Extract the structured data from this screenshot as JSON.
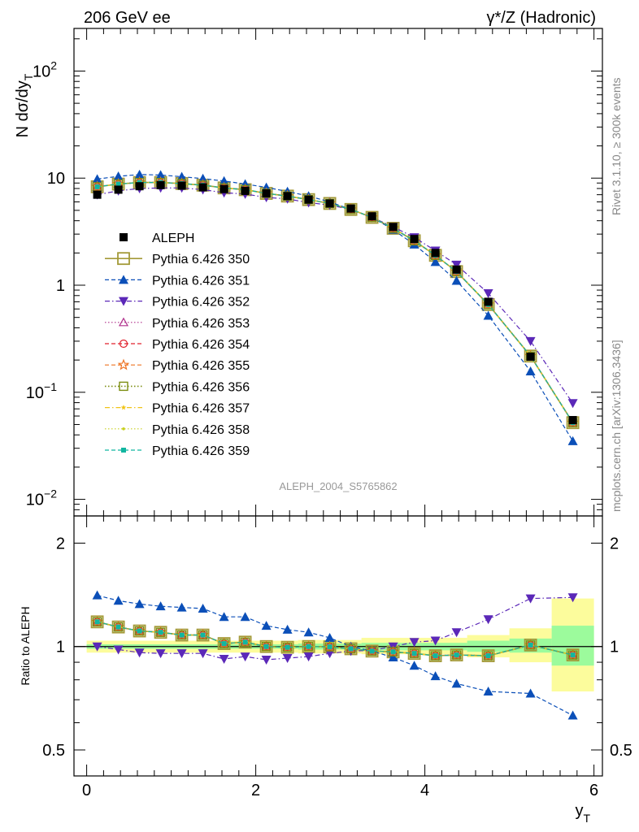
{
  "header": {
    "left": "206 GeV ee",
    "right": "γ*/Z (Hadronic)"
  },
  "side_labels": {
    "rivet": "Rivet 3.1.10, ≥ 300k events",
    "mcplots": "mcplots.cern.ch [arXiv:1306.3436]"
  },
  "analysis_id": "ALEPH_2004_S5765862",
  "colors": {
    "data": "#000000",
    "s350": "#a39a38",
    "s351": "#0b4fb8",
    "s352": "#5b28b8",
    "s353": "#b0308c",
    "s354": "#e0202c",
    "s355": "#ee7322",
    "s356": "#7c8e12",
    "s357": "#f0c418",
    "s358": "#c8d020",
    "s359": "#12b6a0",
    "band_inner": "#9cfb9c",
    "band_outer": "#fcfc9c"
  },
  "chart_data": [
    {
      "panel": "main",
      "type": "scatter",
      "yscale": "log",
      "ylabel": "N dσ/dy_T",
      "ylim": [
        0.007,
        250
      ],
      "xlim": [
        -0.15,
        6.1
      ],
      "yticks": [
        {
          "value": 0.01,
          "base": "10",
          "exp": "−2"
        },
        {
          "value": 0.1,
          "base": "10",
          "exp": "−1"
        },
        {
          "value": 1,
          "base": "1",
          "exp": ""
        },
        {
          "value": 10,
          "base": "10",
          "exp": ""
        },
        {
          "value": 100,
          "base": "10",
          "exp": "2"
        }
      ],
      "x": [
        0.125,
        0.375,
        0.625,
        0.875,
        1.125,
        1.375,
        1.625,
        1.875,
        2.125,
        2.375,
        2.625,
        2.875,
        3.125,
        3.375,
        3.625,
        3.875,
        4.125,
        4.375,
        4.75,
        5.25,
        5.75
      ],
      "data": {
        "name": "ALEPH",
        "values": [
          7.0,
          7.8,
          8.4,
          8.6,
          8.5,
          8.2,
          7.9,
          7.6,
          7.2,
          6.8,
          6.3,
          5.8,
          5.2,
          4.4,
          3.5,
          2.7,
          2.0,
          1.4,
          0.7,
          0.215,
          0.055
        ]
      },
      "series": [
        {
          "key": "s350",
          "name": "Pythia 6.426 350",
          "values": [
            8.3,
            8.8,
            9.1,
            9.1,
            8.9,
            8.6,
            8.1,
            7.8,
            7.2,
            6.8,
            6.3,
            5.8,
            5.1,
            4.3,
            3.4,
            2.6,
            1.9,
            1.34,
            0.66,
            0.218,
            0.052
          ]
        },
        {
          "key": "s351",
          "name": "Pythia 6.426 351",
          "values": [
            9.8,
            10.4,
            10.8,
            10.7,
            10.3,
            9.9,
            9.4,
            8.8,
            8.2,
            7.5,
            6.8,
            6.0,
            5.1,
            4.3,
            3.3,
            2.4,
            1.65,
            1.1,
            0.52,
            0.157,
            0.035
          ]
        },
        {
          "key": "s352",
          "name": "Pythia 6.426 352",
          "values": [
            7.0,
            7.6,
            8.0,
            8.1,
            8.1,
            7.8,
            7.3,
            7.1,
            6.6,
            6.4,
            5.9,
            5.6,
            5.1,
            4.3,
            3.5,
            2.8,
            2.1,
            1.55,
            0.84,
            0.3,
            0.079
          ]
        },
        {
          "key": "s353",
          "name": "Pythia 6.426 353",
          "values": [
            8.3,
            8.8,
            9.1,
            9.1,
            8.9,
            8.6,
            8.1,
            7.8,
            7.2,
            6.8,
            6.3,
            5.8,
            5.1,
            4.3,
            3.4,
            2.6,
            1.9,
            1.34,
            0.66,
            0.218,
            0.052
          ]
        },
        {
          "key": "s354",
          "name": "Pythia 6.426 354",
          "values": [
            8.3,
            8.8,
            9.1,
            9.1,
            8.9,
            8.6,
            8.1,
            7.8,
            7.2,
            6.8,
            6.3,
            5.8,
            5.1,
            4.3,
            3.4,
            2.6,
            1.9,
            1.34,
            0.66,
            0.218,
            0.052
          ]
        },
        {
          "key": "s355",
          "name": "Pythia 6.426 355",
          "values": [
            8.3,
            8.8,
            9.1,
            9.1,
            8.9,
            8.6,
            8.1,
            7.8,
            7.2,
            6.8,
            6.3,
            5.8,
            5.1,
            4.3,
            3.4,
            2.6,
            1.9,
            1.34,
            0.66,
            0.218,
            0.052
          ]
        },
        {
          "key": "s356",
          "name": "Pythia 6.426 356",
          "values": [
            8.3,
            8.8,
            9.1,
            9.1,
            8.9,
            8.6,
            8.1,
            7.8,
            7.2,
            6.8,
            6.3,
            5.8,
            5.1,
            4.3,
            3.4,
            2.6,
            1.9,
            1.34,
            0.66,
            0.218,
            0.052
          ]
        },
        {
          "key": "s357",
          "name": "Pythia 6.426 357",
          "values": [
            8.3,
            8.8,
            9.1,
            9.1,
            8.9,
            8.6,
            8.1,
            7.8,
            7.2,
            6.8,
            6.3,
            5.8,
            5.1,
            4.3,
            3.4,
            2.6,
            1.9,
            1.34,
            0.66,
            0.218,
            0.052
          ]
        },
        {
          "key": "s358",
          "name": "Pythia 6.426 358",
          "values": [
            8.3,
            8.8,
            9.1,
            9.1,
            8.9,
            8.6,
            8.1,
            7.8,
            7.2,
            6.8,
            6.3,
            5.8,
            5.1,
            4.3,
            3.4,
            2.6,
            1.9,
            1.34,
            0.66,
            0.218,
            0.052
          ]
        },
        {
          "key": "s359",
          "name": "Pythia 6.426 359",
          "values": [
            8.3,
            8.8,
            9.1,
            9.1,
            8.9,
            8.6,
            8.1,
            7.8,
            7.2,
            6.8,
            6.3,
            5.8,
            5.1,
            4.3,
            3.4,
            2.6,
            1.9,
            1.34,
            0.66,
            0.218,
            0.052
          ]
        }
      ]
    },
    {
      "panel": "ratio",
      "type": "scatter",
      "yscale": "log",
      "ylabel": "Ratio to ALEPH",
      "xlabel": "y_T",
      "ylim": [
        0.42,
        2.4
      ],
      "yticks": [
        {
          "value": 0.5,
          "label": "0.5"
        },
        {
          "value": 1,
          "label": "1"
        },
        {
          "value": 2,
          "label": "2"
        }
      ],
      "xticks": [
        0,
        2,
        4,
        6
      ],
      "bands": [
        {
          "x0": 0.0,
          "x1": 2.5,
          "inner": [
            0.985,
            1.015
          ],
          "outer": [
            0.96,
            1.04
          ]
        },
        {
          "x0": 2.5,
          "x1": 3.25,
          "inner": [
            0.98,
            1.02
          ],
          "outer": [
            0.955,
            1.045
          ]
        },
        {
          "x0": 3.25,
          "x1": 4.5,
          "inner": [
            0.975,
            1.025
          ],
          "outer": [
            0.95,
            1.06
          ]
        },
        {
          "x0": 4.5,
          "x1": 5.0,
          "inner": [
            0.965,
            1.04
          ],
          "outer": [
            0.93,
            1.08
          ]
        },
        {
          "x0": 5.0,
          "x1": 5.5,
          "inner": [
            0.96,
            1.055
          ],
          "outer": [
            0.9,
            1.13
          ]
        },
        {
          "x0": 5.5,
          "x1": 6.0,
          "inner": [
            0.88,
            1.15
          ],
          "outer": [
            0.74,
            1.38
          ]
        }
      ],
      "series": [
        {
          "key": "s350",
          "values": [
            1.18,
            1.14,
            1.11,
            1.1,
            1.08,
            1.08,
            1.02,
            1.03,
            1.0,
            0.995,
            1.0,
            0.998,
            0.985,
            0.97,
            0.965,
            0.955,
            0.94,
            0.945,
            0.94,
            1.01,
            0.945
          ]
        },
        {
          "key": "s351",
          "values": [
            1.41,
            1.36,
            1.33,
            1.31,
            1.3,
            1.29,
            1.22,
            1.22,
            1.15,
            1.12,
            1.1,
            1.06,
            1.0,
            0.97,
            0.93,
            0.88,
            0.82,
            0.78,
            0.74,
            0.73,
            0.63
          ]
        },
        {
          "key": "s352",
          "values": [
            1.0,
            0.98,
            0.96,
            0.955,
            0.955,
            0.955,
            0.92,
            0.935,
            0.915,
            0.925,
            0.935,
            0.955,
            0.97,
            0.975,
            1.0,
            1.03,
            1.04,
            1.1,
            1.2,
            1.38,
            1.39
          ]
        },
        {
          "key": "s353",
          "values": [
            1.18,
            1.14,
            1.11,
            1.1,
            1.08,
            1.08,
            1.02,
            1.03,
            1.0,
            0.995,
            1.0,
            0.998,
            0.985,
            0.97,
            0.965,
            0.955,
            0.94,
            0.945,
            0.94,
            1.01,
            0.945
          ]
        },
        {
          "key": "s354",
          "values": [
            1.18,
            1.14,
            1.11,
            1.1,
            1.08,
            1.08,
            1.02,
            1.03,
            1.0,
            0.995,
            1.0,
            0.998,
            0.985,
            0.97,
            0.965,
            0.955,
            0.94,
            0.945,
            0.94,
            1.01,
            0.945
          ]
        },
        {
          "key": "s355",
          "values": [
            1.18,
            1.14,
            1.11,
            1.1,
            1.08,
            1.08,
            1.02,
            1.03,
            1.0,
            0.995,
            1.0,
            0.998,
            0.985,
            0.97,
            0.965,
            0.955,
            0.94,
            0.945,
            0.94,
            1.01,
            0.945
          ]
        },
        {
          "key": "s356",
          "values": [
            1.18,
            1.14,
            1.11,
            1.1,
            1.08,
            1.08,
            1.02,
            1.03,
            1.0,
            0.995,
            1.0,
            0.998,
            0.985,
            0.97,
            0.965,
            0.955,
            0.94,
            0.945,
            0.94,
            1.01,
            0.945
          ]
        },
        {
          "key": "s357",
          "values": [
            1.18,
            1.14,
            1.11,
            1.1,
            1.08,
            1.08,
            1.02,
            1.03,
            1.0,
            0.995,
            1.0,
            0.998,
            0.985,
            0.97,
            0.965,
            0.955,
            0.94,
            0.945,
            0.94,
            1.01,
            0.945
          ]
        },
        {
          "key": "s358",
          "values": [
            1.18,
            1.14,
            1.11,
            1.1,
            1.08,
            1.08,
            1.02,
            1.03,
            1.0,
            0.995,
            1.0,
            0.998,
            0.985,
            0.97,
            0.965,
            0.955,
            0.94,
            0.945,
            0.94,
            1.01,
            0.945
          ]
        },
        {
          "key": "s359",
          "values": [
            1.18,
            1.14,
            1.11,
            1.1,
            1.08,
            1.08,
            1.02,
            1.03,
            1.0,
            0.995,
            1.0,
            0.998,
            0.985,
            0.97,
            0.965,
            0.955,
            0.94,
            0.945,
            0.94,
            1.01,
            0.945
          ]
        }
      ]
    }
  ]
}
